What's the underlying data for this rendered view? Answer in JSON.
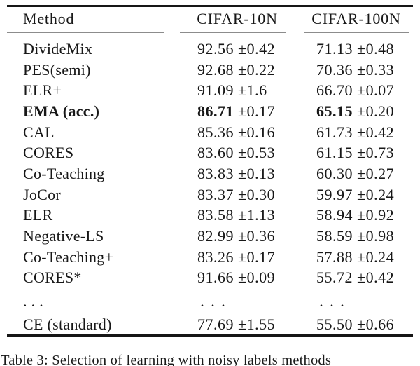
{
  "colors": {
    "background": "#ffffff",
    "text": "#171717",
    "heavy_rule": "#161616",
    "column_midrule": "#8c8c8c"
  },
  "table": {
    "columns": [
      "Method",
      "CIFAR-10N",
      "CIFAR-100N"
    ],
    "rows": [
      {
        "method": "DivideMix",
        "cifar10n": {
          "value": "92.56",
          "error": "±0.42"
        },
        "cifar100n": {
          "value": "71.13",
          "error": "±0.48"
        },
        "bold": false
      },
      {
        "method": "PES(semi)",
        "cifar10n": {
          "value": "92.68",
          "error": "±0.22"
        },
        "cifar100n": {
          "value": "70.36",
          "error": "±0.33"
        },
        "bold": false
      },
      {
        "method": "ELR+",
        "cifar10n": {
          "value": "91.09",
          "error": "±1.6"
        },
        "cifar100n": {
          "value": "66.70",
          "error": "±0.07"
        },
        "bold": false
      },
      {
        "method": "EMA (acc.)",
        "cifar10n": {
          "value": "86.71",
          "error": "±0.17"
        },
        "cifar100n": {
          "value": "65.15",
          "error": "±0.20"
        },
        "bold": true
      },
      {
        "method": "CAL",
        "cifar10n": {
          "value": "85.36",
          "error": "±0.16"
        },
        "cifar100n": {
          "value": "61.73",
          "error": "±0.42"
        },
        "bold": false
      },
      {
        "method": "CORES",
        "cifar10n": {
          "value": "83.60",
          "error": "±0.53"
        },
        "cifar100n": {
          "value": "61.15",
          "error": "±0.73"
        },
        "bold": false
      },
      {
        "method": "Co-Teaching",
        "cifar10n": {
          "value": "83.83",
          "error": "±0.13"
        },
        "cifar100n": {
          "value": "60.30",
          "error": "±0.27"
        },
        "bold": false
      },
      {
        "method": "JoCor",
        "cifar10n": {
          "value": "83.37",
          "error": "±0.30"
        },
        "cifar100n": {
          "value": "59.97",
          "error": "±0.24"
        },
        "bold": false
      },
      {
        "method": "ELR",
        "cifar10n": {
          "value": "83.58",
          "error": "±1.13"
        },
        "cifar100n": {
          "value": "58.94",
          "error": "±0.92"
        },
        "bold": false
      },
      {
        "method": "Negative-LS",
        "cifar10n": {
          "value": "82.99",
          "error": "±0.36"
        },
        "cifar100n": {
          "value": "58.59",
          "error": "±0.98"
        },
        "bold": false
      },
      {
        "method": "Co-Teaching+",
        "cifar10n": {
          "value": "83.26",
          "error": "±0.17"
        },
        "cifar100n": {
          "value": "57.88",
          "error": "±0.24"
        },
        "bold": false
      },
      {
        "method": "CORES*",
        "cifar10n": {
          "value": "91.66",
          "error": "±0.09"
        },
        "cifar100n": {
          "value": "55.72",
          "error": "±0.42"
        },
        "bold": false
      },
      {
        "method": ". . .",
        "cifar10n": {
          "value": ". . .",
          "error": ""
        },
        "cifar100n": {
          "value": ". . .",
          "error": ""
        },
        "bold": false,
        "ellipsis": true
      },
      {
        "method": "CE (standard)",
        "cifar10n": {
          "value": "77.69",
          "error": "±1.55"
        },
        "cifar100n": {
          "value": "55.50",
          "error": "±0.66"
        },
        "bold": false,
        "last": true
      }
    ],
    "caption": "Table 3: Selection of learning with noisy labels methods"
  },
  "chart_data": {
    "type": "table",
    "title": "Table 3",
    "columns": [
      "Method",
      "CIFAR-10N",
      "CIFAR-100N"
    ],
    "rows": [
      [
        "DivideMix",
        "92.56 ±0.42",
        "71.13 ±0.48"
      ],
      [
        "PES(semi)",
        "92.68 ±0.22",
        "70.36 ±0.33"
      ],
      [
        "ELR+",
        "91.09 ±1.6",
        "66.70 ±0.07"
      ],
      [
        "EMA (acc.)",
        "86.71 ±0.17",
        "65.15 ±0.20"
      ],
      [
        "CAL",
        "85.36 ±0.16",
        "61.73 ±0.42"
      ],
      [
        "CORES",
        "83.60 ±0.53",
        "61.15 ±0.73"
      ],
      [
        "Co-Teaching",
        "83.83 ±0.13",
        "60.30 ±0.27"
      ],
      [
        "JoCor",
        "83.37 ±0.30",
        "59.97 ±0.24"
      ],
      [
        "ELR",
        "83.58 ±1.13",
        "58.94 ±0.92"
      ],
      [
        "Negative-LS",
        "82.99 ±0.36",
        "58.59 ±0.98"
      ],
      [
        "Co-Teaching+",
        "83.26 ±0.17",
        "57.88 ±0.24"
      ],
      [
        "CORES*",
        "91.66 ±0.09",
        "55.72 ±0.42"
      ],
      [
        ". . .",
        ". . .",
        ". . ."
      ],
      [
        "CE (standard)",
        "77.69 ±1.55",
        "55.50 ±0.66"
      ]
    ]
  }
}
